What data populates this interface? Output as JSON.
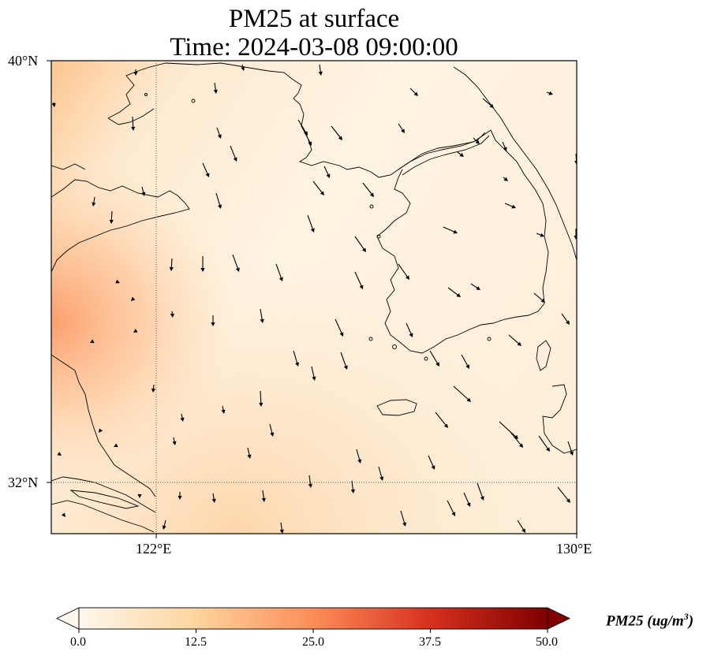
{
  "title_line1": "PM25 at surface",
  "title_line2": "Time: 2024-03-08 09:00:00",
  "map": {
    "lon_range": [
      120,
      130
    ],
    "lat_range": [
      31,
      40
    ],
    "gridlines": "dotted",
    "lon_ticks": [
      {
        "value": 122,
        "label": "122°E"
      },
      {
        "value": 130,
        "label": "130°E"
      }
    ],
    "lat_ticks": [
      {
        "value": 40,
        "label": "40°N"
      },
      {
        "value": 32,
        "label": "32°N"
      }
    ],
    "field": "PM25",
    "vectors": "wind arrows pointing mostly south-southeast"
  },
  "colorbar": {
    "colormap": "OrRd",
    "colors": [
      "#fff7ec",
      "#fdd49e",
      "#fc8d59",
      "#d7301f",
      "#7f0000"
    ],
    "ticks": [
      "0.0",
      "12.5",
      "25.0",
      "37.5",
      "50.0"
    ],
    "label_main": "PM25 (ug/m",
    "label_sup": "3",
    "label_close": ")",
    "extend": "both"
  }
}
